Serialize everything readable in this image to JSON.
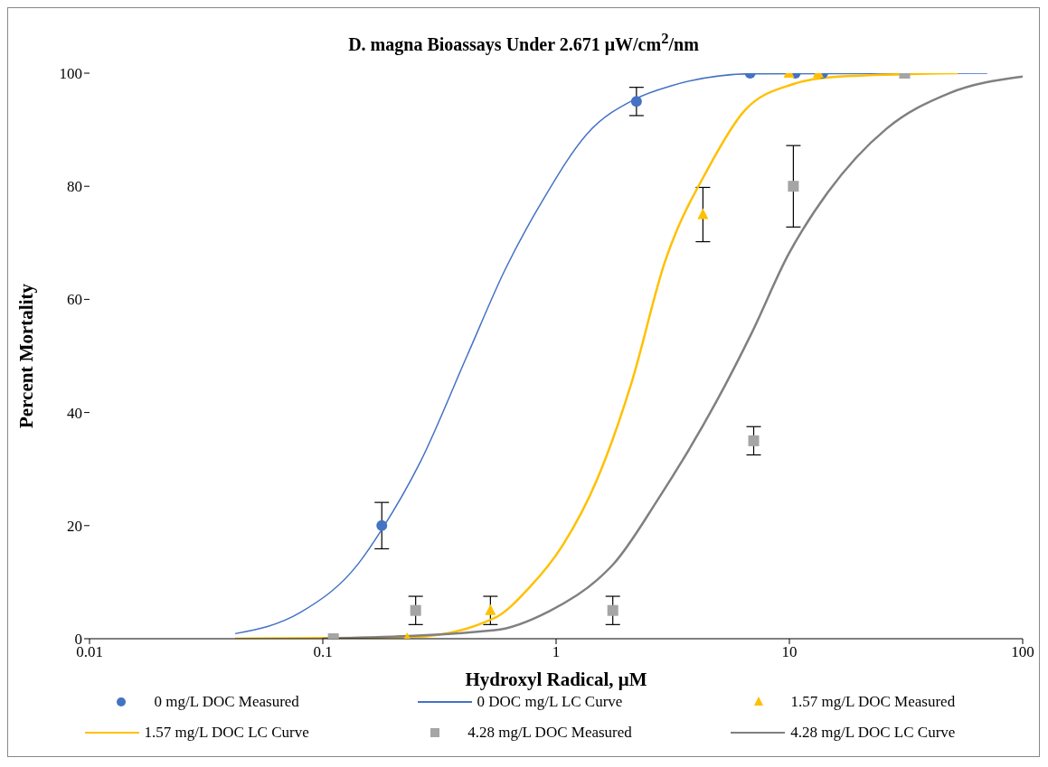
{
  "chart_data": {
    "type": "scatter",
    "title": "D. magna Bioassays Under 2.671 μW/cm$^{2}$/nm",
    "xlabel": "Hydroxyl Radical, μM",
    "ylabel": "Percent Mortality",
    "log": "x",
    "xlim": [
      0.01,
      100
    ],
    "xticks": [
      0.01,
      0.1,
      1,
      10,
      100
    ],
    "ylim": [
      0,
      100
    ],
    "yticks": [
      0,
      20,
      40,
      60,
      80,
      100
    ],
    "grid": false,
    "legend": "bottom",
    "series": [
      {
        "name": "0 mg/L DOC Measured",
        "marker": "circle",
        "color": "#4472c4",
        "x": [
          0.179,
          2.21,
          6.79,
          10.6,
          13.9
        ],
        "values": [
          20,
          95,
          100,
          100,
          100
        ],
        "errors": [
          4.1,
          2.5,
          null,
          null,
          null
        ]
      },
      {
        "name": "0 DOC mg/L LC Curve",
        "type": "line",
        "marker": "none",
        "color": "#4472c4",
        "x": [
          0.0421,
          0.0798,
          0.1416,
          0.179,
          0.26,
          0.417,
          0.605,
          0.879,
          1.36,
          2.18,
          3.14,
          6.9,
          70.5
        ],
        "values": [
          0.9,
          4.6,
          13.2,
          19.3,
          31,
          50.2,
          65.3,
          77.6,
          89.3,
          95.4,
          97.8,
          99.9,
          100
        ]
      },
      {
        "name": "1.57 mg/L DOC Measured",
        "marker": "triangle",
        "color": "#ffc000",
        "x": [
          0.23,
          0.523,
          4.26,
          9.96,
          13.3
        ],
        "values": [
          0,
          5,
          75,
          100,
          100
        ],
        "errors": [
          null,
          2.5,
          4.8,
          null,
          null
        ]
      },
      {
        "name": "1.57 mg/L DOC LC Curve",
        "type": "line",
        "marker": "none",
        "color": "#ffc000",
        "x": [
          0.0421,
          0.243,
          0.546,
          0.766,
          1.07,
          1.5,
          2.11,
          2.92,
          4.49,
          6.43,
          10.25,
          16.3,
          52.9
        ],
        "values": [
          0,
          0.3,
          3.7,
          9,
          16.6,
          28.2,
          45.4,
          66.5,
          83.2,
          93.4,
          98,
          99.4,
          100
        ]
      },
      {
        "name": "4.28 mg/L DOC Measured",
        "marker": "square",
        "color": "#a5a5a5",
        "x": [
          0.111,
          0.25,
          1.75,
          7.03,
          10.4,
          31.2
        ],
        "values": [
          0,
          5,
          5,
          35,
          80,
          100
        ],
        "errors": [
          null,
          2.5,
          2.5,
          2.5,
          7.2,
          null
        ]
      },
      {
        "name": "4.28 mg/L DOC LC Curve",
        "type": "line",
        "marker": "none",
        "color": "#808080",
        "x": [
          0.1,
          0.546,
          0.938,
          1.5,
          1.77,
          2.72,
          4.83,
          6.9,
          9.89,
          14.6,
          26.1,
          48,
          100
        ],
        "values": [
          0,
          1.5,
          4.9,
          10.4,
          13.3,
          24.5,
          41.7,
          54.1,
          67.9,
          78.9,
          90.2,
          96.4,
          99.4
        ]
      }
    ]
  }
}
